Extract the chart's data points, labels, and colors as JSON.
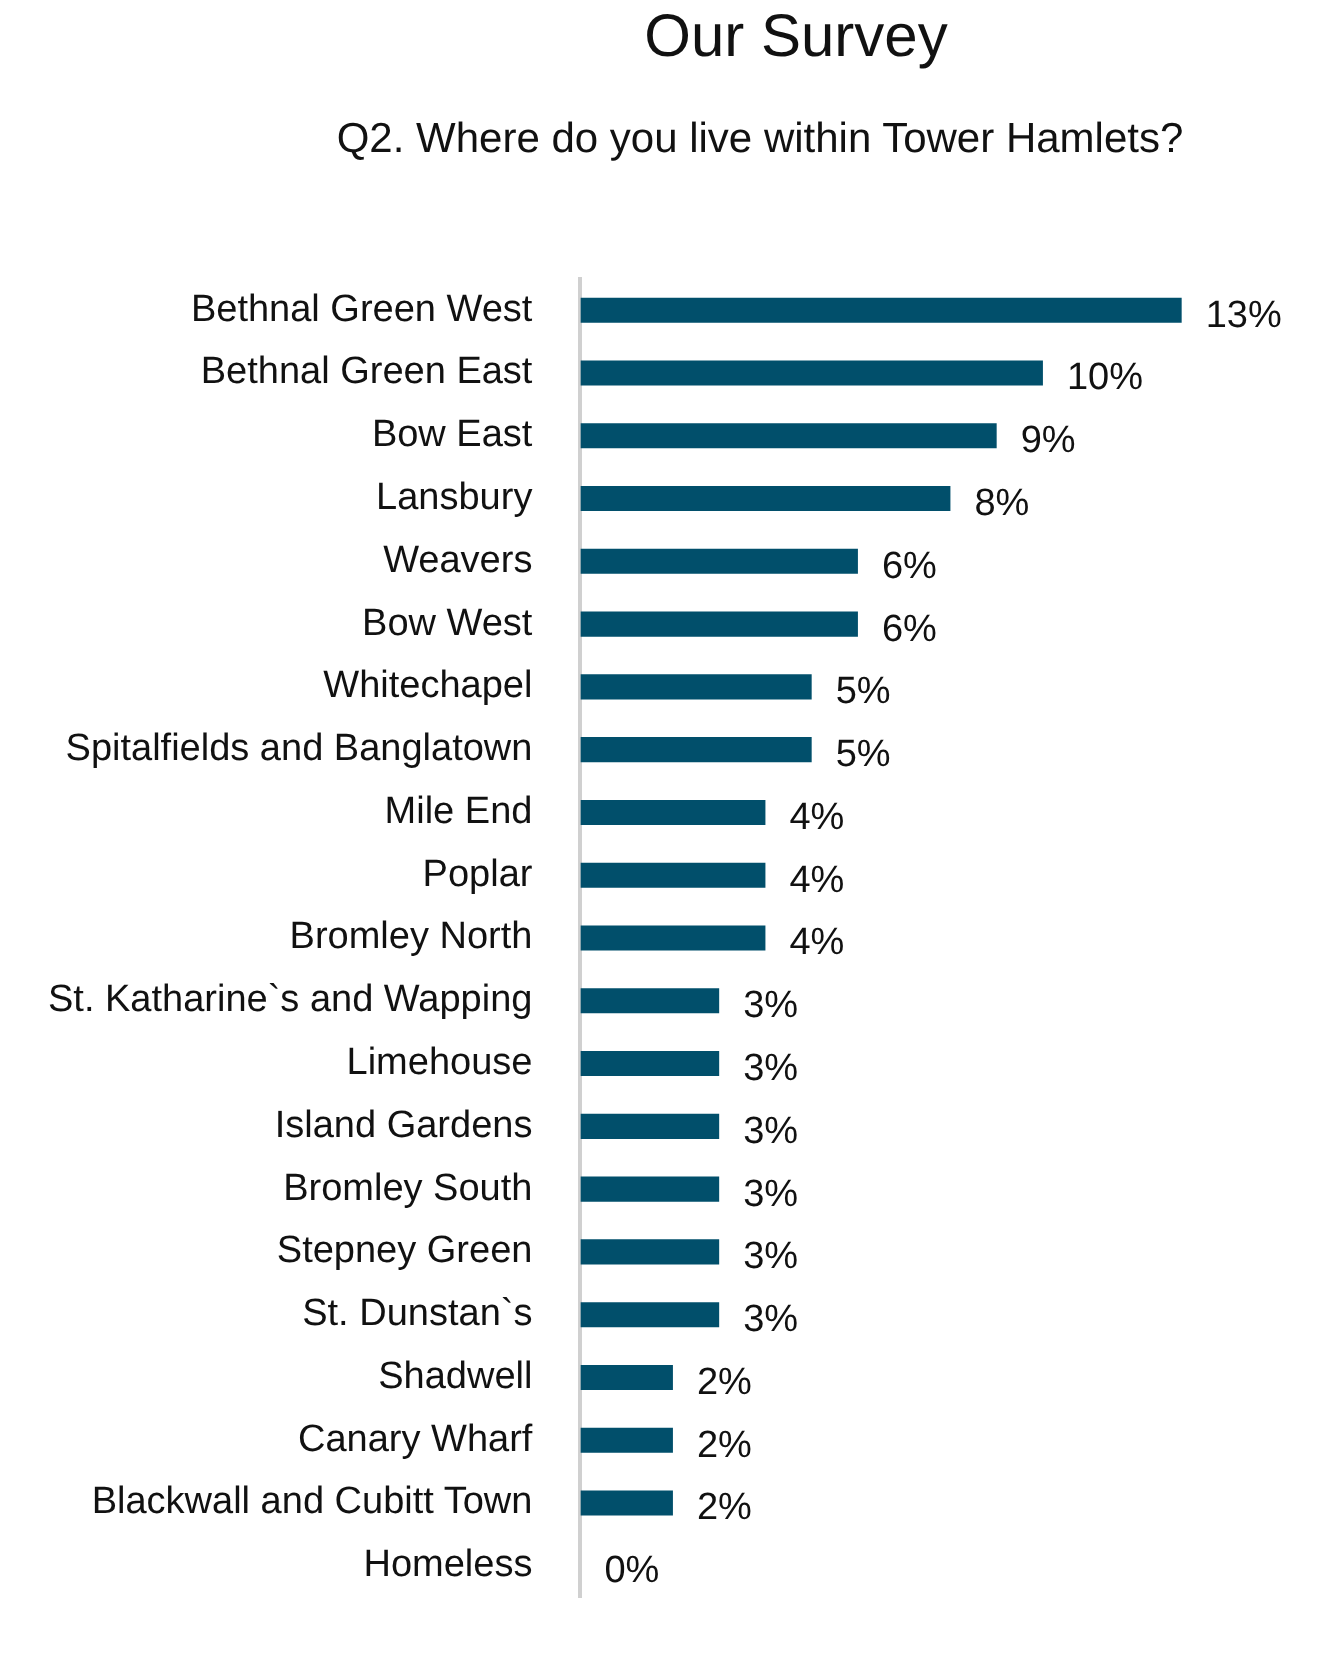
{
  "chart_data": {
    "type": "bar",
    "orientation": "horizontal",
    "title": "Our Survey",
    "subtitle": "Q2. Where do you live within Tower Hamlets?",
    "categories": [
      "Bethnal Green West",
      "Bethnal Green East",
      "Bow East",
      "Lansbury",
      "Weavers",
      "Bow West",
      "Whitechapel",
      "Spitalfields and Banglatown",
      "Mile End",
      "Poplar",
      "Bromley North",
      "St. Katharine`s and Wapping",
      "Limehouse",
      "Island Gardens",
      "Bromley South",
      "Stepney Green",
      "St. Dunstan`s",
      "Shadwell",
      "Canary Wharf",
      "Blackwall and Cubitt Town",
      "Homeless"
    ],
    "values": [
      13,
      10,
      9,
      8,
      6,
      6,
      5,
      5,
      4,
      4,
      4,
      3,
      3,
      3,
      3,
      3,
      3,
      2,
      2,
      2,
      0
    ],
    "value_labels": [
      "13%",
      "10%",
      "9%",
      "8%",
      "6%",
      "6%",
      "5%",
      "5%",
      "4%",
      "4%",
      "4%",
      "3%",
      "3%",
      "3%",
      "3%",
      "3%",
      "3%",
      "2%",
      "2%",
      "2%",
      "0%"
    ],
    "color": "#014f6b"
  }
}
